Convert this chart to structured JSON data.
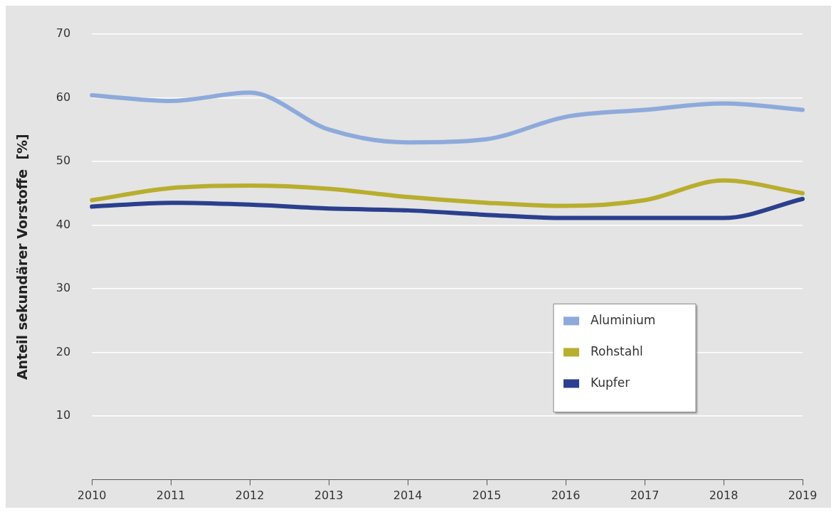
{
  "chart_data": {
    "type": "line",
    "ylabel": "Anteil sekundärer Vorstoffe  [%]",
    "categories": [
      "2010",
      "2011",
      "2012",
      "2013",
      "2014",
      "2015",
      "2016",
      "2017",
      "2018",
      "2019"
    ],
    "series": [
      {
        "name": "Aluminium",
        "color": "#8eaadb",
        "values": [
          60.4,
          59.5,
          60.8,
          55.0,
          53.0,
          53.5,
          57.0,
          58.1,
          59.1,
          58.1
        ]
      },
      {
        "name": "Rohstahl",
        "color": "#b8ae2e",
        "values": [
          43.9,
          45.8,
          46.2,
          45.7,
          44.4,
          43.5,
          43.0,
          43.9,
          47.0,
          45.0
        ]
      },
      {
        "name": "Kupfer",
        "color": "#2b3f8e",
        "values": [
          42.9,
          43.5,
          43.2,
          42.6,
          42.3,
          41.6,
          41.1,
          41.1,
          41.1,
          44.1
        ]
      }
    ],
    "ylim": [
      0,
      70
    ],
    "yticks": [
      10,
      20,
      30,
      40,
      50,
      60,
      70
    ],
    "grid": "y",
    "legend": "bottom right",
    "marker": "none",
    "line_style": "solid"
  }
}
